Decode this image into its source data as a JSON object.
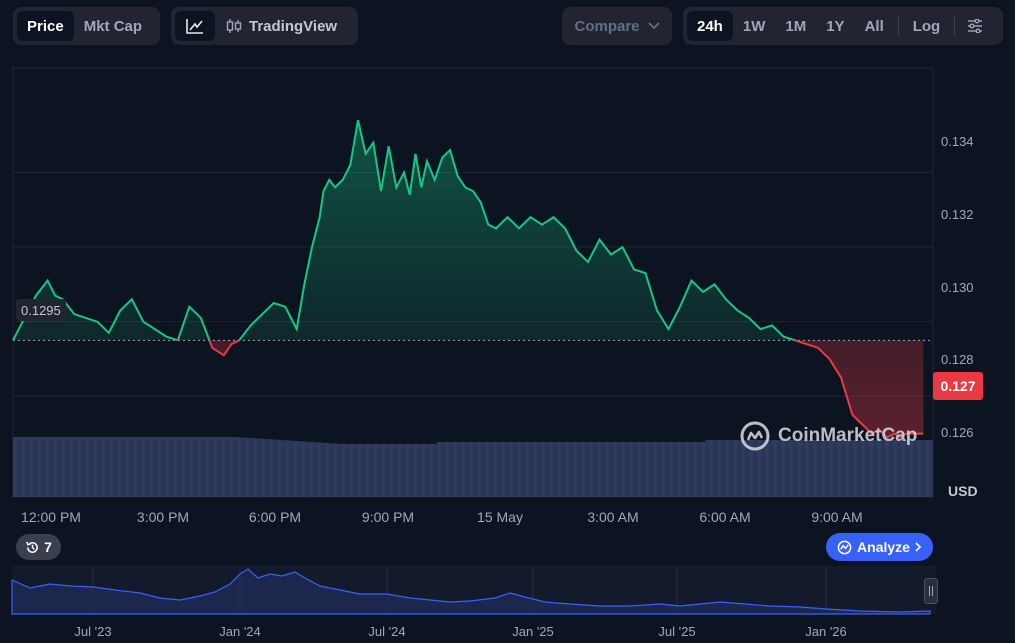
{
  "toolbar": {
    "price_tab": "Price",
    "mktcap_tab": "Mkt Cap",
    "tradingview_label": "TradingView",
    "compare_label": "Compare",
    "ranges": [
      "24h",
      "1W",
      "1M",
      "1Y",
      "All"
    ],
    "log_label": "Log"
  },
  "chart": {
    "open_price_label": "0.1295",
    "current_price_label": "0.127",
    "currency_label": "USD",
    "y_ticks": [
      "0.134",
      "0.132",
      "0.130",
      "0.128",
      "0.126"
    ],
    "x_ticks": [
      "12:00 PM",
      "3:00 PM",
      "6:00 PM",
      "9:00 PM",
      "15 May",
      "3:00 AM",
      "6:00 AM",
      "9:00 AM"
    ],
    "watermark": "CoinMarketCap",
    "up_color": "#16c784",
    "down_color": "#ea3943"
  },
  "chart_data": {
    "type": "line",
    "ylim": [
      0.1253,
      0.1368
    ],
    "baseline": 0.1295,
    "series": [
      {
        "x_hours": [
          0,
          0.3,
          0.6,
          0.9,
          1.1,
          1.3,
          1.6,
          1.9,
          2.2,
          2.5,
          2.8,
          3.1,
          3.4,
          3.7,
          4.0,
          4.3,
          4.6,
          4.9,
          5.2,
          5.5,
          5.7,
          5.9,
          6.2,
          6.5,
          6.8,
          7.1,
          7.4,
          7.6,
          7.8,
          8.0,
          8.1,
          8.25,
          8.4,
          8.6,
          8.8,
          9.0,
          9.2,
          9.4,
          9.6,
          9.8,
          10.0,
          10.2,
          10.35,
          10.5,
          10.65,
          10.8,
          11.0,
          11.2,
          11.4,
          11.6,
          11.8,
          12.0,
          12.2,
          12.4,
          12.6,
          12.9,
          13.2,
          13.5,
          13.8,
          14.1,
          14.4,
          14.7,
          15.0,
          15.3,
          15.6,
          15.9,
          16.2,
          16.5,
          16.8,
          17.1,
          17.4,
          17.7,
          18.0,
          18.3,
          18.6,
          18.9,
          19.2,
          19.5,
          19.8,
          20.1,
          20.4,
          20.7,
          21.0,
          21.3,
          21.6,
          21.9,
          22.2,
          22.4,
          22.6,
          22.8,
          23.0,
          23.15,
          23.3,
          23.5,
          23.75
        ],
        "price": [
          0.1295,
          0.1301,
          0.1307,
          0.1311,
          0.1307,
          0.1306,
          0.1302,
          0.1301,
          0.13,
          0.1297,
          0.1303,
          0.1306,
          0.13,
          0.1298,
          0.1296,
          0.1295,
          0.1304,
          0.1301,
          0.1293,
          0.1291,
          0.1294,
          0.1295,
          0.1299,
          0.1302,
          0.1305,
          0.1304,
          0.1298,
          0.131,
          0.132,
          0.1328,
          0.1335,
          0.1338,
          0.1336,
          0.1338,
          0.1342,
          0.1354,
          0.1345,
          0.1348,
          0.1335,
          0.1347,
          0.1336,
          0.134,
          0.1334,
          0.1345,
          0.1336,
          0.1343,
          0.1338,
          0.1344,
          0.1346,
          0.1339,
          0.1336,
          0.1335,
          0.1332,
          0.1326,
          0.1325,
          0.1328,
          0.1325,
          0.1328,
          0.1326,
          0.1328,
          0.1325,
          0.1319,
          0.1316,
          0.1322,
          0.1318,
          0.132,
          0.1314,
          0.1313,
          0.1303,
          0.1298,
          0.1304,
          0.1311,
          0.1308,
          0.131,
          0.1306,
          0.1303,
          0.1301,
          0.1298,
          0.1299,
          0.1296,
          0.1295,
          0.1294,
          0.1293,
          0.129,
          0.1285,
          0.1275,
          0.1272,
          0.127,
          0.1271,
          0.1269,
          0.127,
          0.1269,
          0.127,
          0.127,
          0.127
        ]
      }
    ]
  },
  "navigator": {
    "x_ticks": [
      "Jul '23",
      "Jan '24",
      "Jul '24",
      "Jan '25",
      "Jul '25",
      "Jan '26"
    ]
  },
  "footer": {
    "history_count": "7",
    "analyze_label": "Analyze"
  }
}
